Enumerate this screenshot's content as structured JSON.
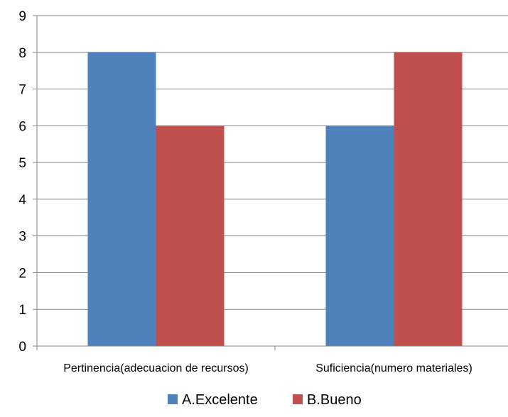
{
  "chart_data": {
    "type": "bar",
    "categories": [
      "Pertinencia(adecuacion de recursos)",
      "Suficiencia(numero materiales)"
    ],
    "series": [
      {
        "name": "A.Excelente",
        "values": [
          8,
          6
        ],
        "color": "#4f81bd"
      },
      {
        "name": "B.Bueno",
        "values": [
          6,
          8
        ],
        "color": "#c0504d"
      }
    ],
    "title": "",
    "xlabel": "",
    "ylabel": "",
    "ylim": [
      0,
      9
    ],
    "yticks": [
      "0",
      "1",
      "2",
      "3",
      "4",
      "5",
      "6",
      "7",
      "8",
      "9"
    ],
    "grid": true,
    "legend_position": "bottom"
  }
}
